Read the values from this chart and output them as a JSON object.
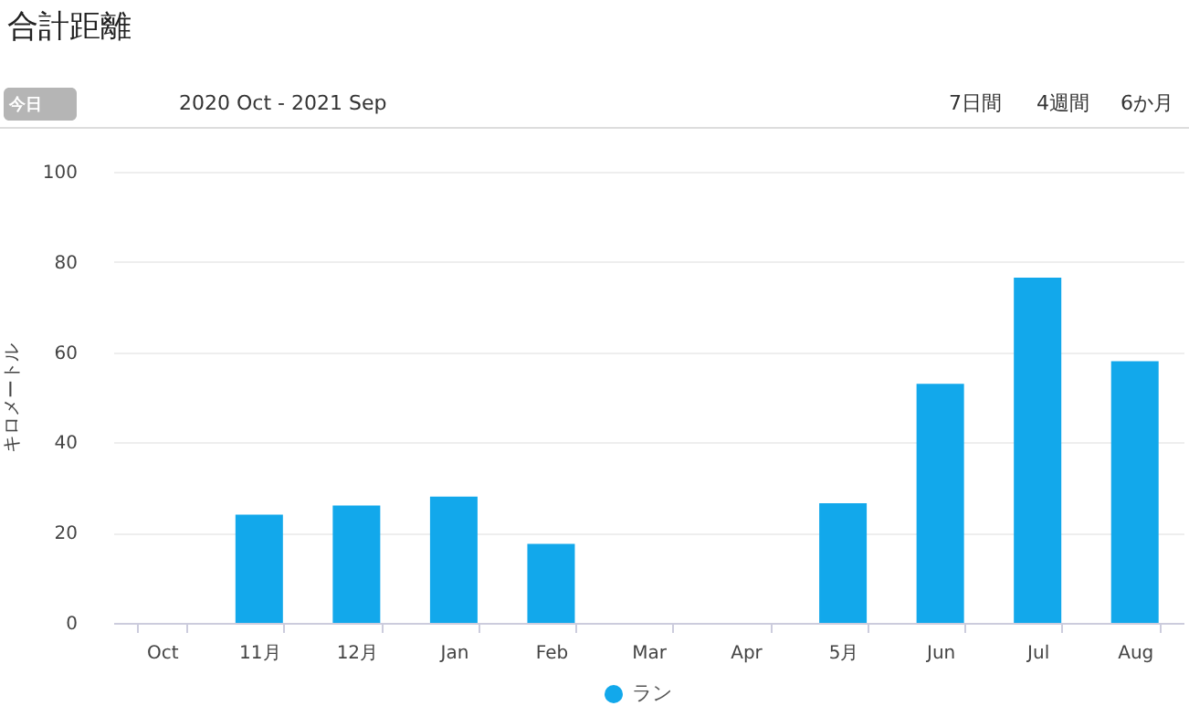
{
  "chart_data": {
    "type": "bar",
    "title": "合計距離",
    "ylabel": "キロメートル",
    "annotations": [
      "今日",
      "2020 Oct - 2021 Sep",
      "7日間",
      "4週間",
      "6か月"
    ],
    "categories": [
      "Oct",
      "11月",
      "12月",
      "Jan",
      "Feb",
      "Mar",
      "Apr",
      "5月",
      "Jun",
      "Jul",
      "Aug"
    ],
    "series": [
      {
        "name": "ラン",
        "color": "#12a8eb",
        "values": [
          0,
          24,
          26,
          28,
          17.5,
          0,
          0,
          26.5,
          53,
          76.5,
          58
        ]
      }
    ],
    "ylim": [
      0,
      100
    ],
    "yticks": [
      0,
      20,
      40,
      60,
      80,
      100
    ],
    "grid": "y",
    "legend": "bottom"
  }
}
